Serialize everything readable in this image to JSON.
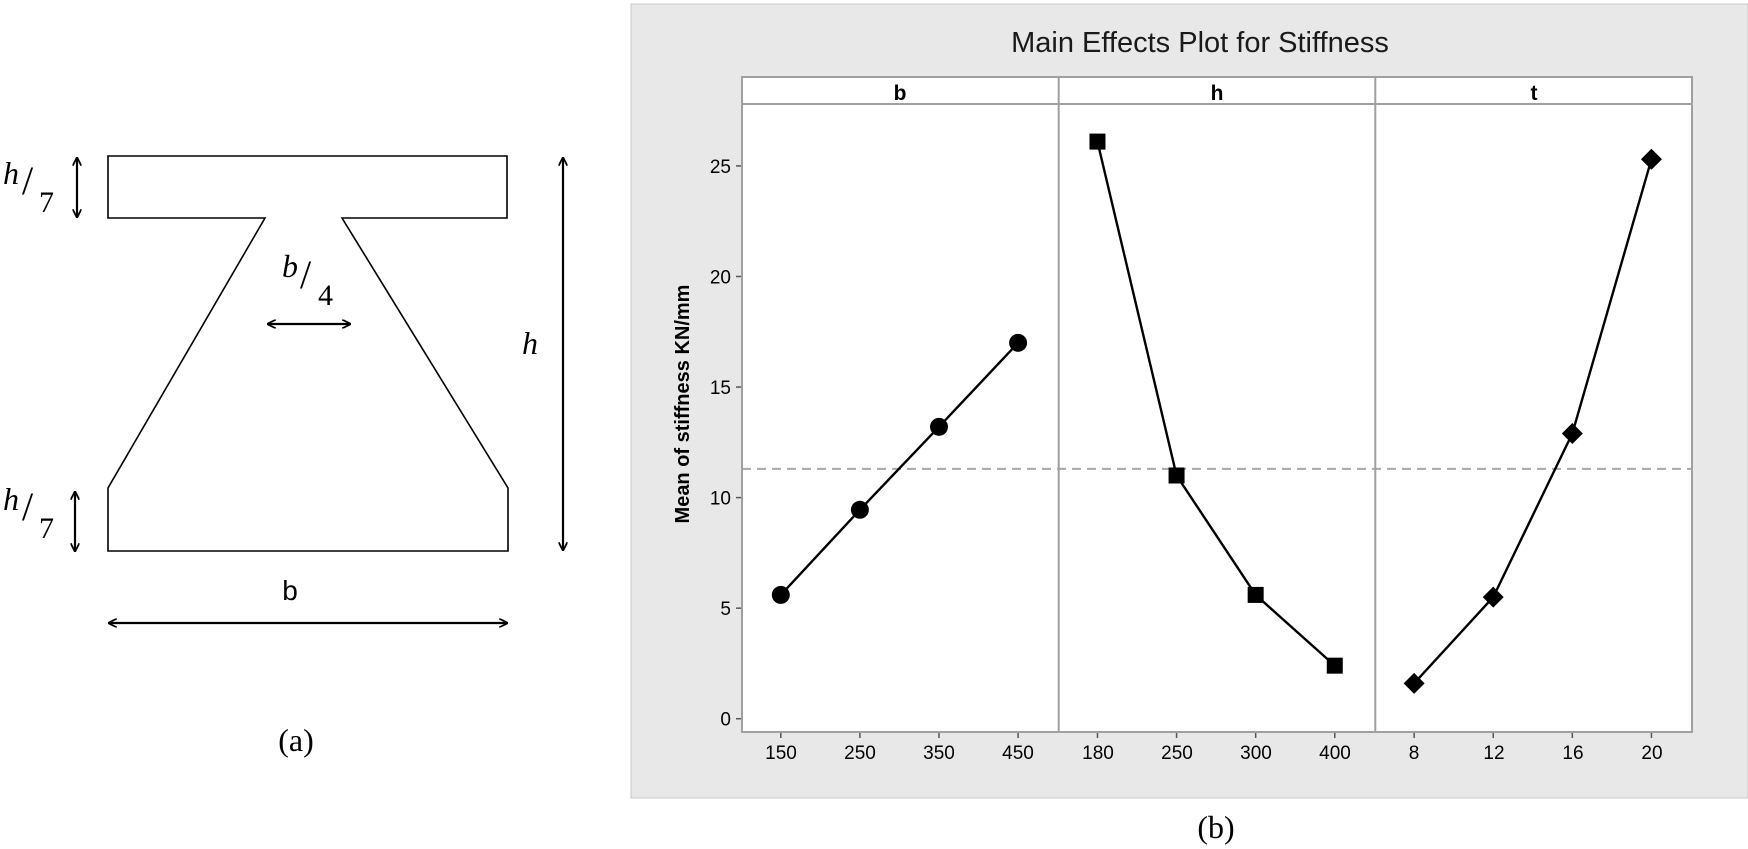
{
  "figure": {
    "caption_a": "(a)",
    "caption_b": "(b)"
  },
  "diagram": {
    "label_h7_top_num": "h",
    "label_h7_top_den": "7",
    "label_h7_bottom_num": "h",
    "label_h7_bottom_den": "7",
    "label_b4_num": "b",
    "label_b4_den": "4",
    "label_h": "h",
    "label_b": "b"
  },
  "chart_data": {
    "type": "line",
    "title": "Main Effects Plot for Stiffness",
    "ylabel": "Mean of stiffness KN/mm",
    "ylim": [
      -0.6,
      27.8
    ],
    "yticks": [
      0,
      5,
      10,
      15,
      20,
      25
    ],
    "mean_line": 11.3,
    "panels": [
      {
        "factor": "b",
        "marker": "circle",
        "categories": [
          "150",
          "250",
          "350",
          "450"
        ],
        "values": [
          5.6,
          9.45,
          13.2,
          17.0
        ]
      },
      {
        "factor": "h",
        "marker": "square",
        "categories": [
          "180",
          "250",
          "300",
          "400"
        ],
        "values": [
          26.1,
          11.0,
          5.6,
          2.4
        ]
      },
      {
        "factor": "t",
        "marker": "diamond",
        "categories": [
          "8",
          "12",
          "16",
          "20"
        ],
        "values": [
          1.6,
          5.5,
          12.9,
          25.3
        ]
      }
    ]
  },
  "colors": {
    "panel_bg": "#e8e8e8",
    "plot_bg": "#ffffff",
    "line": "#000000",
    "frame": "#a0a0a0",
    "mean_line": "#a8a8a8"
  }
}
